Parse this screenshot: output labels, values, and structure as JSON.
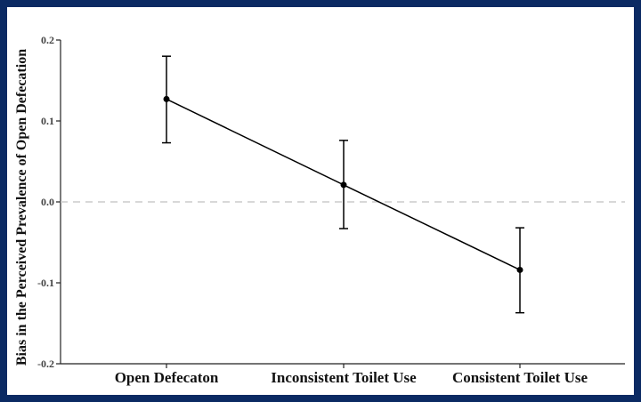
{
  "chart_data": {
    "type": "line",
    "title": "",
    "xlabel": "",
    "ylabel": "Bias in the Perceived Prevalence of Open Defecation",
    "categories": [
      "Open Defecaton",
      "Inconsistent Toilet Use",
      "Consistent Toilet Use"
    ],
    "series": [
      {
        "values": [
          0.127,
          0.021,
          -0.084
        ],
        "ci_low": [
          0.073,
          -0.033,
          -0.137
        ],
        "ci_high": [
          0.18,
          0.076,
          -0.032
        ]
      }
    ],
    "ylim": [
      -0.2,
      0.2
    ],
    "yticks": [
      -0.2,
      -0.1,
      0.0,
      0.1,
      0.2
    ],
    "ytick_labels": [
      "-0.2",
      "-0.1",
      "0.0",
      "0.1",
      "0.2"
    ],
    "reference_line": 0.0,
    "grid": false,
    "colors": {
      "line": "#000000",
      "reference": "#cccccc",
      "frame": "#0b2a63"
    }
  }
}
